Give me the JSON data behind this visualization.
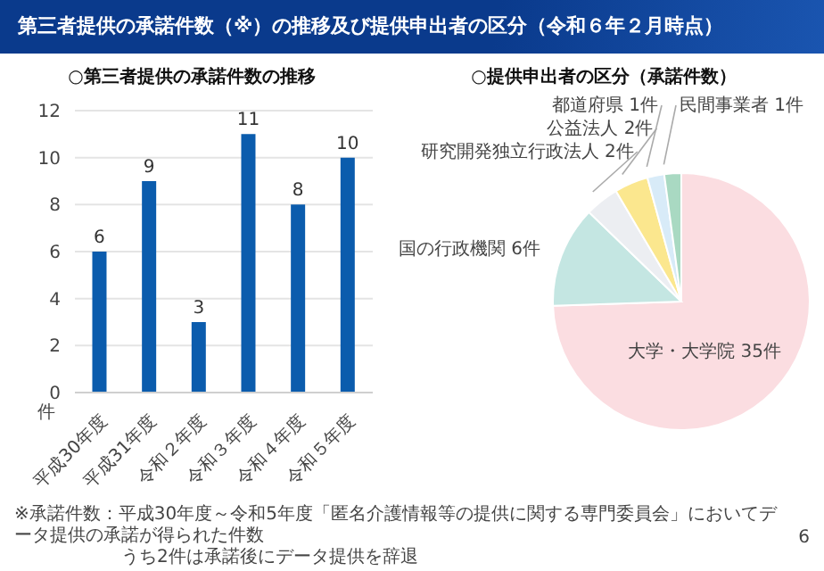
{
  "chart_data": [
    {
      "type": "bar",
      "title": "○第三者提供の承諾件数の推移",
      "ylabel": "件",
      "annotations": [
        "第三者提供の承諾件数（※）の推移及び提供申出者の区分（令和６年２月時点）"
      ],
      "categories": [
        "平成30年度",
        "平成31年度",
        "令和２年度",
        "令和３年度",
        "令和４年度",
        "令和５年度"
      ],
      "values": [
        6,
        9,
        3,
        11,
        8,
        10
      ],
      "color": "#0b5cad",
      "ylim": [
        0,
        12
      ],
      "yticks": [
        0,
        2,
        4,
        6,
        8,
        10,
        12
      ],
      "grid": "y",
      "data_labels": true
    },
    {
      "type": "pie",
      "title": "○提供申出者の区分（承諾件数）",
      "annotations": [
        "※承諾件数：平成30年度～令和5年度「匿名介護情報等の提供に関する専門委員会」においてデータ提供の承諾が得られた件数",
        "うち2件は承諾後にデータ提供を辞退",
        "6"
      ],
      "categories": [
        "大学・大学院",
        "国の行政機関",
        "研究開発独立行政法人",
        "公益法人",
        "都道府県",
        "民間事業者"
      ],
      "values": [
        35,
        6,
        2,
        2,
        1,
        1
      ],
      "value_labels": [
        "35件",
        "6件",
        "2件",
        "2件",
        "1件",
        "1件"
      ],
      "colors": [
        "#fbdde1",
        "#c4e6e2",
        "#eceef2",
        "#fbe78e",
        "#d8ebf8",
        "#a9d9c2"
      ]
    }
  ]
}
